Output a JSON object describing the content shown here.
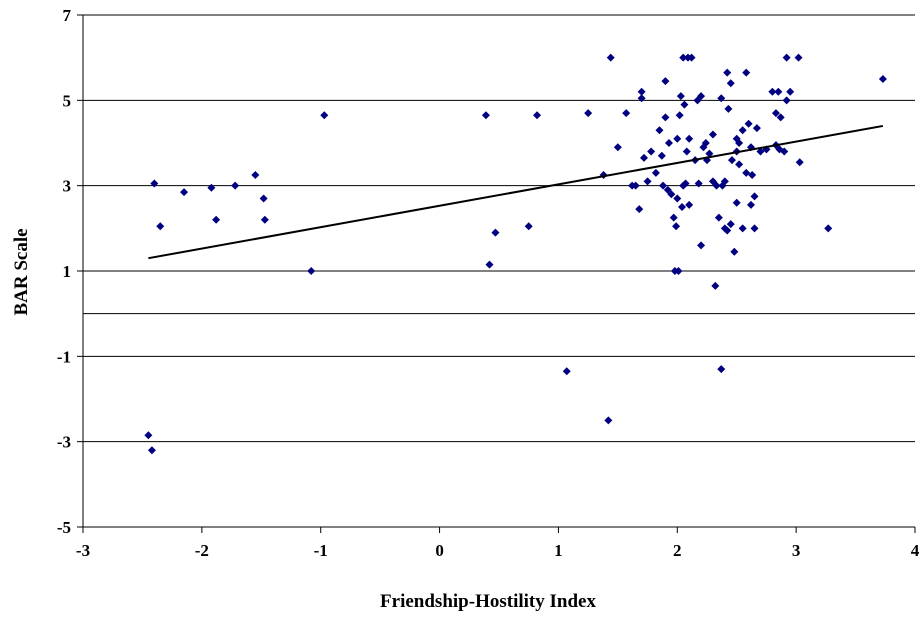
{
  "chart_data": {
    "type": "scatter",
    "title": "",
    "xlabel": "Friendship-Hostility Index",
    "ylabel": "BAR Scale",
    "xlim": [
      -3,
      4
    ],
    "ylim": [
      -5,
      7
    ],
    "xticks": [
      -3,
      -2,
      -1,
      0,
      1,
      2,
      3,
      4
    ],
    "yticks": [
      -5,
      -3,
      -1,
      1,
      3,
      5,
      7
    ],
    "x_tick_labels": [
      "-3",
      "-2",
      "-1",
      "0",
      "1",
      "2",
      "3",
      "4"
    ],
    "y_tick_labels": [
      "-5",
      "-3",
      "-1",
      "1",
      "3",
      "5",
      "7"
    ],
    "grid": "horizontal",
    "marker_color": "#000080",
    "trendline": {
      "x": [
        -2.45,
        3.73
      ],
      "y": [
        1.3,
        4.4
      ],
      "color": "#000000"
    },
    "points": [
      [
        -2.45,
        -2.85
      ],
      [
        -2.42,
        -3.2
      ],
      [
        -2.4,
        3.05
      ],
      [
        -2.35,
        2.05
      ],
      [
        -2.15,
        2.85
      ],
      [
        -1.92,
        2.95
      ],
      [
        -1.88,
        2.2
      ],
      [
        -1.72,
        3.0
      ],
      [
        -1.55,
        3.25
      ],
      [
        -1.48,
        2.7
      ],
      [
        -1.47,
        2.2
      ],
      [
        -1.08,
        1.0
      ],
      [
        -0.97,
        4.65
      ],
      [
        0.39,
        4.65
      ],
      [
        0.42,
        1.15
      ],
      [
        0.47,
        1.9
      ],
      [
        0.75,
        2.05
      ],
      [
        0.82,
        4.65
      ],
      [
        1.07,
        -1.35
      ],
      [
        1.25,
        4.7
      ],
      [
        1.38,
        3.25
      ],
      [
        1.42,
        -2.5
      ],
      [
        1.44,
        6.0
      ],
      [
        1.5,
        3.9
      ],
      [
        1.57,
        4.7
      ],
      [
        1.62,
        3.0
      ],
      [
        1.65,
        3.0
      ],
      [
        1.68,
        2.45
      ],
      [
        1.7,
        5.05
      ],
      [
        1.7,
        5.2
      ],
      [
        1.72,
        3.65
      ],
      [
        1.75,
        3.1
      ],
      [
        1.78,
        3.8
      ],
      [
        1.82,
        3.3
      ],
      [
        1.85,
        4.3
      ],
      [
        1.87,
        3.7
      ],
      [
        1.88,
        3.0
      ],
      [
        1.9,
        4.6
      ],
      [
        1.9,
        5.45
      ],
      [
        1.92,
        2.9
      ],
      [
        1.93,
        4.0
      ],
      [
        1.95,
        2.8
      ],
      [
        1.97,
        2.25
      ],
      [
        1.98,
        1.0
      ],
      [
        1.99,
        2.05
      ],
      [
        2.0,
        2.7
      ],
      [
        2.0,
        4.1
      ],
      [
        2.01,
        1.0
      ],
      [
        2.02,
        4.65
      ],
      [
        2.03,
        5.1
      ],
      [
        2.04,
        2.5
      ],
      [
        2.05,
        6.0
      ],
      [
        2.05,
        3.0
      ],
      [
        2.06,
        4.9
      ],
      [
        2.07,
        3.05
      ],
      [
        2.08,
        3.8
      ],
      [
        2.09,
        6.0
      ],
      [
        2.1,
        2.55
      ],
      [
        2.1,
        4.1
      ],
      [
        2.12,
        6.0
      ],
      [
        2.15,
        3.6
      ],
      [
        2.17,
        5.0
      ],
      [
        2.18,
        3.05
      ],
      [
        2.2,
        1.6
      ],
      [
        2.2,
        5.1
      ],
      [
        2.22,
        3.9
      ],
      [
        2.24,
        4.0
      ],
      [
        2.25,
        3.6
      ],
      [
        2.27,
        3.75
      ],
      [
        2.3,
        4.2
      ],
      [
        2.3,
        3.1
      ],
      [
        2.32,
        0.65
      ],
      [
        2.33,
        3.0
      ],
      [
        2.35,
        2.25
      ],
      [
        2.37,
        -1.3
      ],
      [
        2.37,
        5.05
      ],
      [
        2.38,
        3.0
      ],
      [
        2.4,
        3.1
      ],
      [
        2.4,
        2.0
      ],
      [
        2.42,
        5.65
      ],
      [
        2.42,
        1.95
      ],
      [
        2.43,
        4.8
      ],
      [
        2.45,
        5.4
      ],
      [
        2.45,
        2.1
      ],
      [
        2.46,
        3.6
      ],
      [
        2.48,
        1.45
      ],
      [
        2.5,
        4.1
      ],
      [
        2.5,
        3.8
      ],
      [
        2.5,
        2.6
      ],
      [
        2.52,
        4.0
      ],
      [
        2.52,
        3.5
      ],
      [
        2.55,
        4.3
      ],
      [
        2.55,
        2.0
      ],
      [
        2.58,
        5.65
      ],
      [
        2.58,
        3.3
      ],
      [
        2.6,
        4.45
      ],
      [
        2.62,
        3.9
      ],
      [
        2.62,
        2.55
      ],
      [
        2.63,
        3.25
      ],
      [
        2.65,
        2.0
      ],
      [
        2.65,
        2.75
      ],
      [
        2.67,
        4.35
      ],
      [
        2.7,
        3.8
      ],
      [
        2.75,
        3.85
      ],
      [
        2.8,
        5.2
      ],
      [
        2.83,
        4.7
      ],
      [
        2.83,
        3.95
      ],
      [
        2.85,
        5.2
      ],
      [
        2.86,
        3.85
      ],
      [
        2.87,
        4.6
      ],
      [
        2.9,
        3.8
      ],
      [
        2.92,
        5.0
      ],
      [
        2.92,
        6.0
      ],
      [
        2.95,
        5.2
      ],
      [
        3.02,
        6.0
      ],
      [
        3.03,
        3.55
      ],
      [
        3.27,
        2.0
      ],
      [
        3.73,
        5.5
      ]
    ]
  }
}
